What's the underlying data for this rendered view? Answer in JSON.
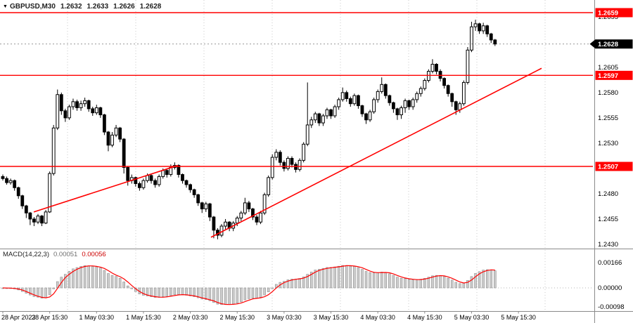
{
  "header": {
    "symbol": "GBPUSD,M30",
    "open": "1.2632",
    "high": "1.2633",
    "low": "1.2626",
    "close": "1.2628"
  },
  "indicator": {
    "label": "MACD(14,22,3)",
    "main_value": "0.00051",
    "signal_value": "0.00056"
  },
  "colors": {
    "level_line": "#ff0000",
    "trend_line": "#ff0000",
    "signal_line": "#ff0000",
    "histogram": "#cccccc",
    "histogram_edge": "#8f8f8f",
    "current_box": "#000000",
    "axis_text": "#000000",
    "grid": "#c9c9c9",
    "separator": "#8a8a8a"
  },
  "chart_data": {
    "type": "candlestick",
    "symbol": "GBPUSD",
    "timeframe": "M30",
    "x_labels": [
      "28 Apr 2023",
      "28 Apr 15:30",
      "1 May 03:30",
      "1 May 15:30",
      "2 May 03:30",
      "2 May 15:30",
      "3 May 03:30",
      "3 May 15:30",
      "4 May 03:30",
      "4 May 15:30",
      "5 May 03:30",
      "5 May 15:30"
    ],
    "y_ticks": [
      1.2655,
      1.263,
      1.2605,
      1.258,
      1.2555,
      1.253,
      1.2505,
      1.248,
      1.2455,
      1.243
    ],
    "y_range": [
      1.2424,
      1.2672
    ],
    "current_price": 1.2628,
    "horizontal_levels": [
      1.2659,
      1.2597,
      1.2507
    ],
    "trendlines": [
      {
        "x1": 48,
        "price1": 1.2462,
        "x2": 253,
        "price2": 1.2508
      },
      {
        "x1": 300,
        "price1": 1.2437,
        "x2": 770,
        "price2": 1.2604
      }
    ],
    "indicator": {
      "type": "MACD",
      "params": [
        14,
        22,
        3
      ],
      "current_main": 0.00051,
      "current_signal": 0.00056,
      "axis_ticks": [
        "0.00166",
        "0.00000",
        "-0.00098"
      ]
    },
    "candles": [
      [
        1.2497,
        1.2499,
        1.2493,
        1.2495
      ],
      [
        1.2495,
        1.2497,
        1.2489,
        1.2491
      ],
      [
        1.2491,
        1.2495,
        1.2489,
        1.2493
      ],
      [
        1.2493,
        1.2494,
        1.2483,
        1.2486
      ],
      [
        1.2486,
        1.2487,
        1.2475,
        1.2478
      ],
      [
        1.2478,
        1.2479,
        1.2465,
        1.2468
      ],
      [
        1.2468,
        1.2469,
        1.2456,
        1.2461
      ],
      [
        1.2461,
        1.2462,
        1.2449,
        1.2455
      ],
      [
        1.2455,
        1.2457,
        1.2448,
        1.2452
      ],
      [
        1.2452,
        1.246,
        1.245,
        1.2458
      ],
      [
        1.2458,
        1.2459,
        1.2448,
        1.2451
      ],
      [
        1.2451,
        1.2464,
        1.245,
        1.2462
      ],
      [
        1.2462,
        1.2502,
        1.2461,
        1.25
      ],
      [
        1.25,
        1.2548,
        1.2498,
        1.2545
      ],
      [
        1.2545,
        1.2583,
        1.2543,
        1.2578
      ],
      [
        1.2578,
        1.258,
        1.2558,
        1.2562
      ],
      [
        1.2562,
        1.2564,
        1.2551,
        1.2555
      ],
      [
        1.2555,
        1.2568,
        1.2553,
        1.2566
      ],
      [
        1.2566,
        1.2574,
        1.2563,
        1.2571
      ],
      [
        1.2571,
        1.2573,
        1.2562,
        1.2565
      ],
      [
        1.2565,
        1.2572,
        1.2562,
        1.2569
      ],
      [
        1.2569,
        1.2575,
        1.2566,
        1.2572
      ],
      [
        1.2572,
        1.2573,
        1.2561,
        1.2564
      ],
      [
        1.2564,
        1.2566,
        1.2557,
        1.256
      ],
      [
        1.256,
        1.2568,
        1.2558,
        1.2565
      ],
      [
        1.2565,
        1.2566,
        1.2555,
        1.2558
      ],
      [
        1.2558,
        1.2559,
        1.2538,
        1.2541
      ],
      [
        1.2541,
        1.2542,
        1.2522,
        1.2528
      ],
      [
        1.2528,
        1.2541,
        1.2526,
        1.2538
      ],
      [
        1.2538,
        1.2548,
        1.2536,
        1.2545
      ],
      [
        1.2545,
        1.2546,
        1.2531,
        1.2534
      ],
      [
        1.2534,
        1.2535,
        1.25,
        1.2506
      ],
      [
        1.2506,
        1.2507,
        1.2488,
        1.2493
      ],
      [
        1.2493,
        1.2499,
        1.249,
        1.2496
      ],
      [
        1.2496,
        1.2497,
        1.2487,
        1.249
      ],
      [
        1.249,
        1.2492,
        1.2483,
        1.2486
      ],
      [
        1.2486,
        1.2495,
        1.2484,
        1.2493
      ],
      [
        1.2493,
        1.25,
        1.2491,
        1.2498
      ],
      [
        1.2498,
        1.2499,
        1.249,
        1.2493
      ],
      [
        1.2493,
        1.2495,
        1.2486,
        1.2489
      ],
      [
        1.2489,
        1.2499,
        1.2487,
        1.2497
      ],
      [
        1.2497,
        1.2505,
        1.2495,
        1.2503
      ],
      [
        1.2503,
        1.2505,
        1.2496,
        1.2499
      ],
      [
        1.2499,
        1.2509,
        1.2497,
        1.2506
      ],
      [
        1.2506,
        1.2511,
        1.2504,
        1.2508
      ],
      [
        1.2508,
        1.2509,
        1.2496,
        1.2499
      ],
      [
        1.2499,
        1.25,
        1.249,
        1.2493
      ],
      [
        1.2493,
        1.2494,
        1.2486,
        1.2489
      ],
      [
        1.2489,
        1.249,
        1.2481,
        1.2484
      ],
      [
        1.2484,
        1.2485,
        1.2476,
        1.2479
      ],
      [
        1.2479,
        1.248,
        1.2468,
        1.2471
      ],
      [
        1.2471,
        1.2472,
        1.2461,
        1.2465
      ],
      [
        1.2465,
        1.2472,
        1.2462,
        1.247
      ],
      [
        1.247,
        1.2471,
        1.2453,
        1.2457
      ],
      [
        1.2457,
        1.2458,
        1.2436,
        1.2444
      ],
      [
        1.2444,
        1.2446,
        1.2435,
        1.2439
      ],
      [
        1.2439,
        1.245,
        1.2437,
        1.2448
      ],
      [
        1.2448,
        1.2455,
        1.2445,
        1.2452
      ],
      [
        1.2452,
        1.2453,
        1.2443,
        1.2446
      ],
      [
        1.2446,
        1.2453,
        1.2443,
        1.2451
      ],
      [
        1.2451,
        1.2458,
        1.2448,
        1.2456
      ],
      [
        1.2456,
        1.2463,
        1.2453,
        1.2461
      ],
      [
        1.2461,
        1.2476,
        1.2459,
        1.2471
      ],
      [
        1.2471,
        1.2473,
        1.2462,
        1.2465
      ],
      [
        1.2465,
        1.2466,
        1.2454,
        1.2457
      ],
      [
        1.2457,
        1.2459,
        1.2449,
        1.2452
      ],
      [
        1.2452,
        1.2463,
        1.245,
        1.2461
      ],
      [
        1.2461,
        1.2481,
        1.2459,
        1.2479
      ],
      [
        1.2479,
        1.2498,
        1.2477,
        1.2496
      ],
      [
        1.2496,
        1.2519,
        1.2494,
        1.2516
      ],
      [
        1.2516,
        1.2524,
        1.2513,
        1.2521
      ],
      [
        1.2521,
        1.2523,
        1.2508,
        1.2511
      ],
      [
        1.2511,
        1.2513,
        1.2502,
        1.2505
      ],
      [
        1.2505,
        1.2517,
        1.2503,
        1.2515
      ],
      [
        1.2515,
        1.2517,
        1.2506,
        1.2509
      ],
      [
        1.2509,
        1.2511,
        1.2501,
        1.2504
      ],
      [
        1.2504,
        1.2515,
        1.2502,
        1.2513
      ],
      [
        1.2513,
        1.2531,
        1.2511,
        1.2529
      ],
      [
        1.2529,
        1.259,
        1.2527,
        1.2548
      ],
      [
        1.2548,
        1.2556,
        1.2545,
        1.2553
      ],
      [
        1.2553,
        1.2561,
        1.255,
        1.2559
      ],
      [
        1.2559,
        1.256,
        1.2547,
        1.255
      ],
      [
        1.255,
        1.2559,
        1.2547,
        1.2557
      ],
      [
        1.2557,
        1.2565,
        1.2554,
        1.2563
      ],
      [
        1.2563,
        1.2564,
        1.2554,
        1.2557
      ],
      [
        1.2557,
        1.2568,
        1.2555,
        1.2566
      ],
      [
        1.2566,
        1.2575,
        1.2563,
        1.2573
      ],
      [
        1.2573,
        1.2585,
        1.2571,
        1.258
      ],
      [
        1.258,
        1.2582,
        1.2571,
        1.2574
      ],
      [
        1.2574,
        1.2576,
        1.2566,
        1.2569
      ],
      [
        1.2569,
        1.2579,
        1.2567,
        1.2577
      ],
      [
        1.2577,
        1.2578,
        1.2564,
        1.2567
      ],
      [
        1.2567,
        1.2568,
        1.2556,
        1.2559
      ],
      [
        1.2559,
        1.256,
        1.2549,
        1.2553
      ],
      [
        1.2553,
        1.2563,
        1.2551,
        1.2561
      ],
      [
        1.2561,
        1.2575,
        1.2559,
        1.2573
      ],
      [
        1.2573,
        1.2583,
        1.257,
        1.2581
      ],
      [
        1.2581,
        1.2595,
        1.2579,
        1.2588
      ],
      [
        1.2588,
        1.2589,
        1.2574,
        1.2577
      ],
      [
        1.2577,
        1.2578,
        1.2567,
        1.257
      ],
      [
        1.257,
        1.2571,
        1.256,
        1.2564
      ],
      [
        1.2564,
        1.2565,
        1.2553,
        1.2558
      ],
      [
        1.2558,
        1.2567,
        1.2554,
        1.2565
      ],
      [
        1.2565,
        1.2574,
        1.256,
        1.2572
      ],
      [
        1.2572,
        1.2573,
        1.2563,
        1.2566
      ],
      [
        1.2566,
        1.2575,
        1.2563,
        1.2573
      ],
      [
        1.2573,
        1.2581,
        1.257,
        1.2579
      ],
      [
        1.2579,
        1.2586,
        1.2576,
        1.2584
      ],
      [
        1.2584,
        1.2594,
        1.2582,
        1.2592
      ],
      [
        1.2592,
        1.2603,
        1.259,
        1.2601
      ],
      [
        1.2601,
        1.2613,
        1.2599,
        1.2608
      ],
      [
        1.2608,
        1.2609,
        1.2598,
        1.2601
      ],
      [
        1.2601,
        1.2603,
        1.2591,
        1.2594
      ],
      [
        1.2594,
        1.2595,
        1.2584,
        1.2587
      ],
      [
        1.2587,
        1.2588,
        1.2576,
        1.2579
      ],
      [
        1.2579,
        1.258,
        1.2566,
        1.2571
      ],
      [
        1.2571,
        1.2572,
        1.2558,
        1.2563
      ],
      [
        1.2563,
        1.2571,
        1.256,
        1.2569
      ],
      [
        1.2569,
        1.2592,
        1.2567,
        1.259
      ],
      [
        1.259,
        1.2625,
        1.2588,
        1.2622
      ],
      [
        1.2622,
        1.265,
        1.262,
        1.2645
      ],
      [
        1.2645,
        1.2652,
        1.2641,
        1.2648
      ],
      [
        1.2648,
        1.2649,
        1.2638,
        1.2641
      ],
      [
        1.2641,
        1.2649,
        1.2638,
        1.2646
      ],
      [
        1.2646,
        1.2647,
        1.2635,
        1.2638
      ],
      [
        1.2638,
        1.2639,
        1.2629,
        1.2632
      ],
      [
        1.2632,
        1.2633,
        1.2626,
        1.2628
      ]
    ]
  }
}
